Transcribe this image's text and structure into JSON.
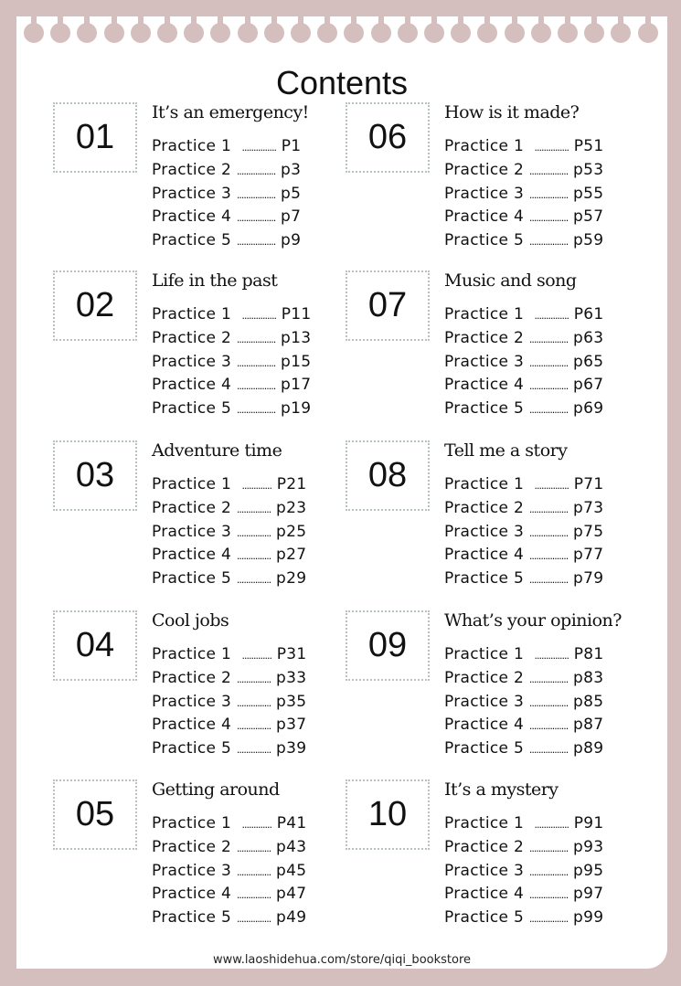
{
  "title": "Contents",
  "footer": "www.laoshidehua.com/store/qiqi_bookstore",
  "colors": {
    "background": "#d5bfbe",
    "page": "#ffffff",
    "box_border": "#b8c2c4"
  },
  "units": [
    {
      "num": "01",
      "title": "It’s an emergency!",
      "rows": [
        {
          "label": "Practice 1",
          "page": "P1"
        },
        {
          "label": "Practice 2",
          "page": "p3"
        },
        {
          "label": "Practice 3",
          "page": "p5"
        },
        {
          "label": "Practice 4",
          "page": "p7"
        },
        {
          "label": "Practice 5",
          "page": "p9"
        }
      ]
    },
    {
      "num": "02",
      "title": "Life in the past",
      "rows": [
        {
          "label": "Practice 1",
          "page": "P11"
        },
        {
          "label": "Practice 2",
          "page": "p13"
        },
        {
          "label": "Practice 3",
          "page": "p15"
        },
        {
          "label": "Practice 4",
          "page": "p17"
        },
        {
          "label": "Practice 5",
          "page": "p19"
        }
      ]
    },
    {
      "num": "03",
      "title": "Adventure time",
      "rows": [
        {
          "label": "Practice 1",
          "page": "P21"
        },
        {
          "label": "Practice 2",
          "page": "p23"
        },
        {
          "label": "Practice 3",
          "page": "p25"
        },
        {
          "label": "Practice 4",
          "page": "p27"
        },
        {
          "label": "Practice 5",
          "page": "p29"
        }
      ]
    },
    {
      "num": "04",
      "title": "Cool jobs",
      "rows": [
        {
          "label": "Practice 1",
          "page": "P31"
        },
        {
          "label": "Practice 2",
          "page": "p33"
        },
        {
          "label": "Practice 3",
          "page": "p35"
        },
        {
          "label": "Practice 4",
          "page": "p37"
        },
        {
          "label": "Practice 5",
          "page": "p39"
        }
      ]
    },
    {
      "num": "05",
      "title": "Getting around",
      "rows": [
        {
          "label": "Practice 1",
          "page": "P41"
        },
        {
          "label": "Practice 2",
          "page": "p43"
        },
        {
          "label": "Practice 3",
          "page": "p45"
        },
        {
          "label": "Practice 4",
          "page": "p47"
        },
        {
          "label": "Practice 5",
          "page": "p49"
        }
      ]
    },
    {
      "num": "06",
      "title": "How is it made?",
      "rows": [
        {
          "label": "Practice 1",
          "page": "P51"
        },
        {
          "label": "Practice 2",
          "page": "p53"
        },
        {
          "label": "Practice 3",
          "page": "p55"
        },
        {
          "label": "Practice 4",
          "page": "p57"
        },
        {
          "label": "Practice 5",
          "page": "p59"
        }
      ]
    },
    {
      "num": "07",
      "title": "Music and song",
      "rows": [
        {
          "label": "Practice 1",
          "page": "P61"
        },
        {
          "label": "Practice 2",
          "page": "p63"
        },
        {
          "label": "Practice 3",
          "page": "p65"
        },
        {
          "label": "Practice 4",
          "page": "p67"
        },
        {
          "label": "Practice 5",
          "page": "p69"
        }
      ]
    },
    {
      "num": "08",
      "title": "Tell me a story",
      "rows": [
        {
          "label": "Practice 1",
          "page": "P71"
        },
        {
          "label": "Practice 2",
          "page": "p73"
        },
        {
          "label": "Practice 3",
          "page": "p75"
        },
        {
          "label": "Practice 4",
          "page": "p77"
        },
        {
          "label": "Practice 5",
          "page": "p79"
        }
      ]
    },
    {
      "num": "09",
      "title": "What’s your opinion?",
      "rows": [
        {
          "label": "Practice 1",
          "page": "P81"
        },
        {
          "label": "Practice 2",
          "page": "p83"
        },
        {
          "label": "Practice 3",
          "page": "p85"
        },
        {
          "label": "Practice 4",
          "page": "p87"
        },
        {
          "label": "Practice 5",
          "page": "p89"
        }
      ]
    },
    {
      "num": "10",
      "title": "It’s a mystery",
      "rows": [
        {
          "label": "Practice 1",
          "page": "P91"
        },
        {
          "label": "Practice 2",
          "page": "p93"
        },
        {
          "label": "Practice 3",
          "page": "p95"
        },
        {
          "label": "Practice 4",
          "page": "p97"
        },
        {
          "label": "Practice 5",
          "page": "p99"
        }
      ]
    }
  ]
}
